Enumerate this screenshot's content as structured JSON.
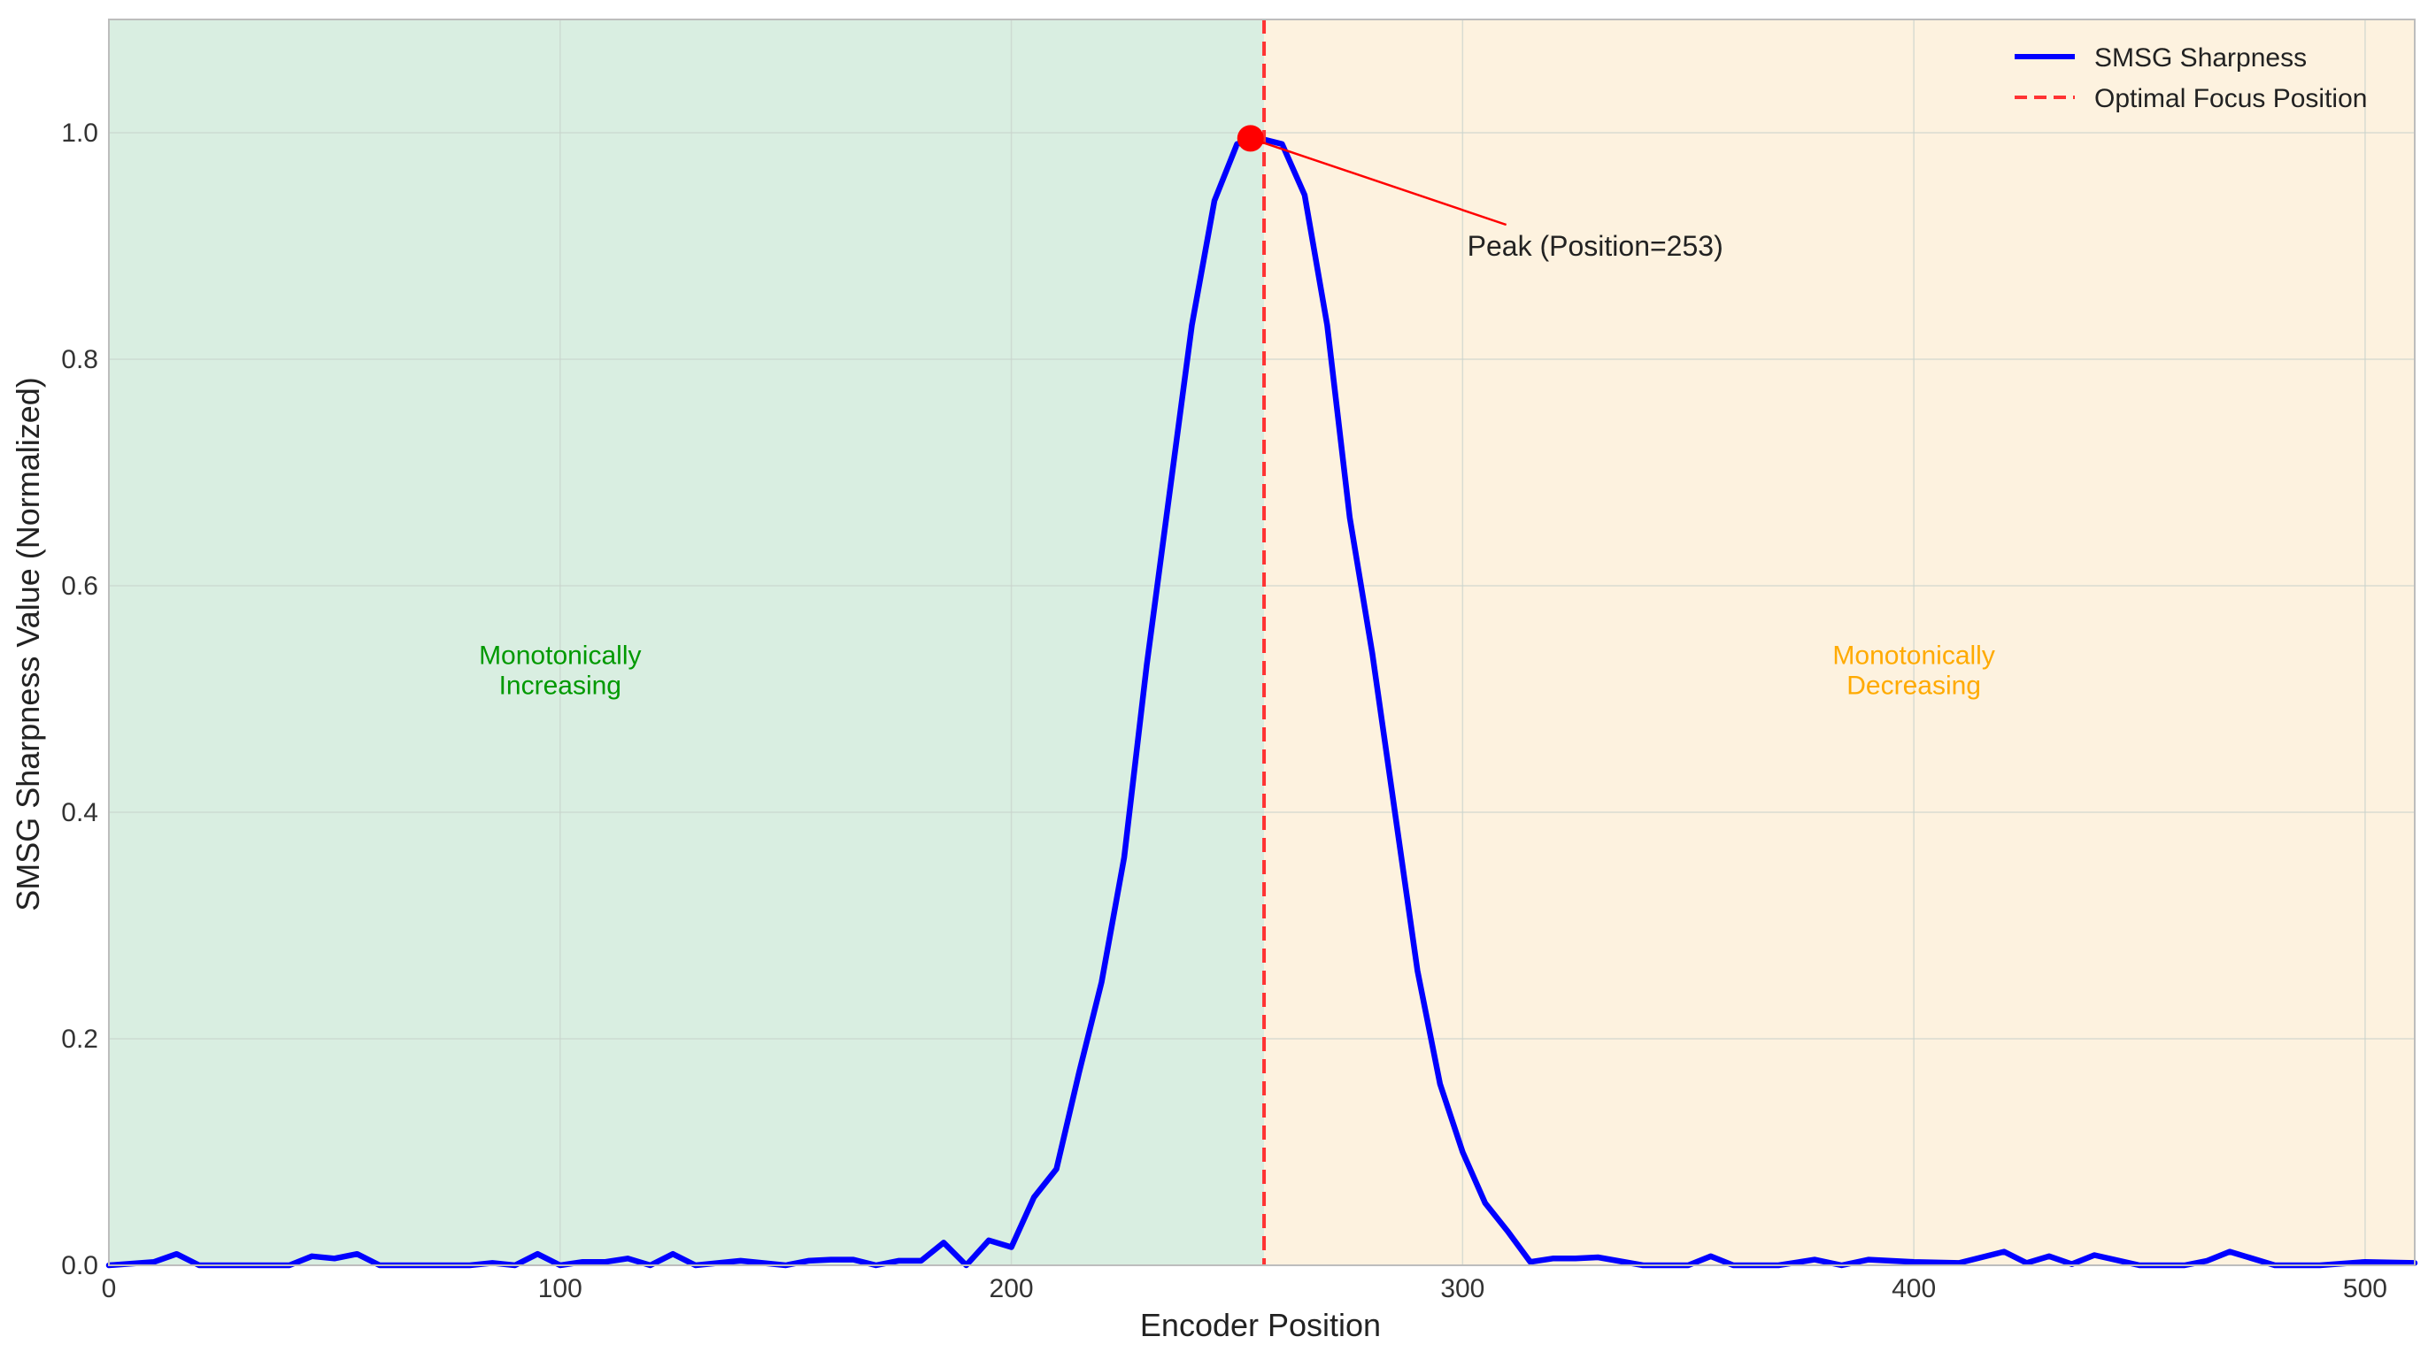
{
  "chart_data": {
    "type": "line",
    "title": "",
    "xlabel": "Encoder Position",
    "ylabel": "SMSG Sharpness Value (Normalized)",
    "xlim": [
      0,
      511
    ],
    "ylim": [
      0,
      1.1
    ],
    "xticks": [
      0,
      100,
      200,
      300,
      400,
      500
    ],
    "yticks": [
      0.0,
      0.2,
      0.4,
      0.6,
      0.8,
      1.0
    ],
    "xtick_labels": [
      "0",
      "100",
      "200",
      "300",
      "400",
      "500"
    ],
    "ytick_labels": [
      "0.0",
      "0.2",
      "0.4",
      "0.6",
      "0.8",
      "1.0"
    ],
    "grid": true,
    "legend_position": "top-right",
    "series": [
      {
        "name": "SMSG Sharpness",
        "color": "#0000ff",
        "x": [
          0,
          10,
          15,
          20,
          30,
          40,
          45,
          50,
          55,
          60,
          70,
          80,
          85,
          90,
          95,
          100,
          105,
          110,
          115,
          120,
          125,
          130,
          140,
          150,
          155,
          160,
          165,
          170,
          175,
          180,
          185,
          190,
          195,
          200,
          205,
          210,
          215,
          220,
          225,
          230,
          235,
          240,
          245,
          250,
          255,
          260,
          265,
          270,
          275,
          280,
          285,
          290,
          295,
          300,
          305,
          310,
          315,
          320,
          325,
          330,
          340,
          350,
          355,
          360,
          370,
          378,
          384,
          390,
          400,
          410,
          420,
          425,
          430,
          435,
          440,
          450,
          460,
          465,
          470,
          480,
          490,
          500,
          511
        ],
        "y": [
          0,
          0.003,
          0.01,
          0,
          0,
          0,
          0.008,
          0.006,
          0.01,
          0,
          0,
          0,
          0.002,
          0,
          0.01,
          0,
          0.003,
          0.003,
          0.006,
          0,
          0.01,
          0,
          0.004,
          0,
          0.004,
          0.005,
          0.005,
          0,
          0.004,
          0.004,
          0.02,
          0,
          0.022,
          0.016,
          0.06,
          0.085,
          0.17,
          0.25,
          0.36,
          0.53,
          0.68,
          0.83,
          0.94,
          0.99,
          0.995,
          0.99,
          0.945,
          0.83,
          0.66,
          0.54,
          0.4,
          0.26,
          0.16,
          0.1,
          0.055,
          0.03,
          0.003,
          0.006,
          0.006,
          0.007,
          0,
          0,
          0.008,
          0,
          0,
          0.005,
          0,
          0.005,
          0.003,
          0.002,
          0.012,
          0.002,
          0.008,
          0.001,
          0.009,
          0,
          0,
          0.004,
          0.012,
          0,
          0,
          0.003,
          0.002
        ]
      }
    ],
    "optimal_focus": {
      "name": "Optimal Focus Position",
      "x": 256,
      "color": "#ff3333"
    },
    "peak": {
      "x": 253,
      "y": 0.995,
      "label": "Peak (Position=253)",
      "text_x": 293,
      "text_y": 0.9
    },
    "regions": [
      {
        "label_line1": "Monotonically",
        "label_line2": "Increasing",
        "x_from": 0,
        "x_to": 256,
        "fill": "#d9eee1",
        "text_color": "#009900",
        "text_x": 100,
        "text_y": 0.52
      },
      {
        "label_line1": "Monotonically",
        "label_line2": "Decreasing",
        "x_from": 256,
        "x_to": 511,
        "fill": "#fdf2df",
        "text_color": "#ffaa00",
        "text_x": 400,
        "text_y": 0.52
      }
    ]
  }
}
